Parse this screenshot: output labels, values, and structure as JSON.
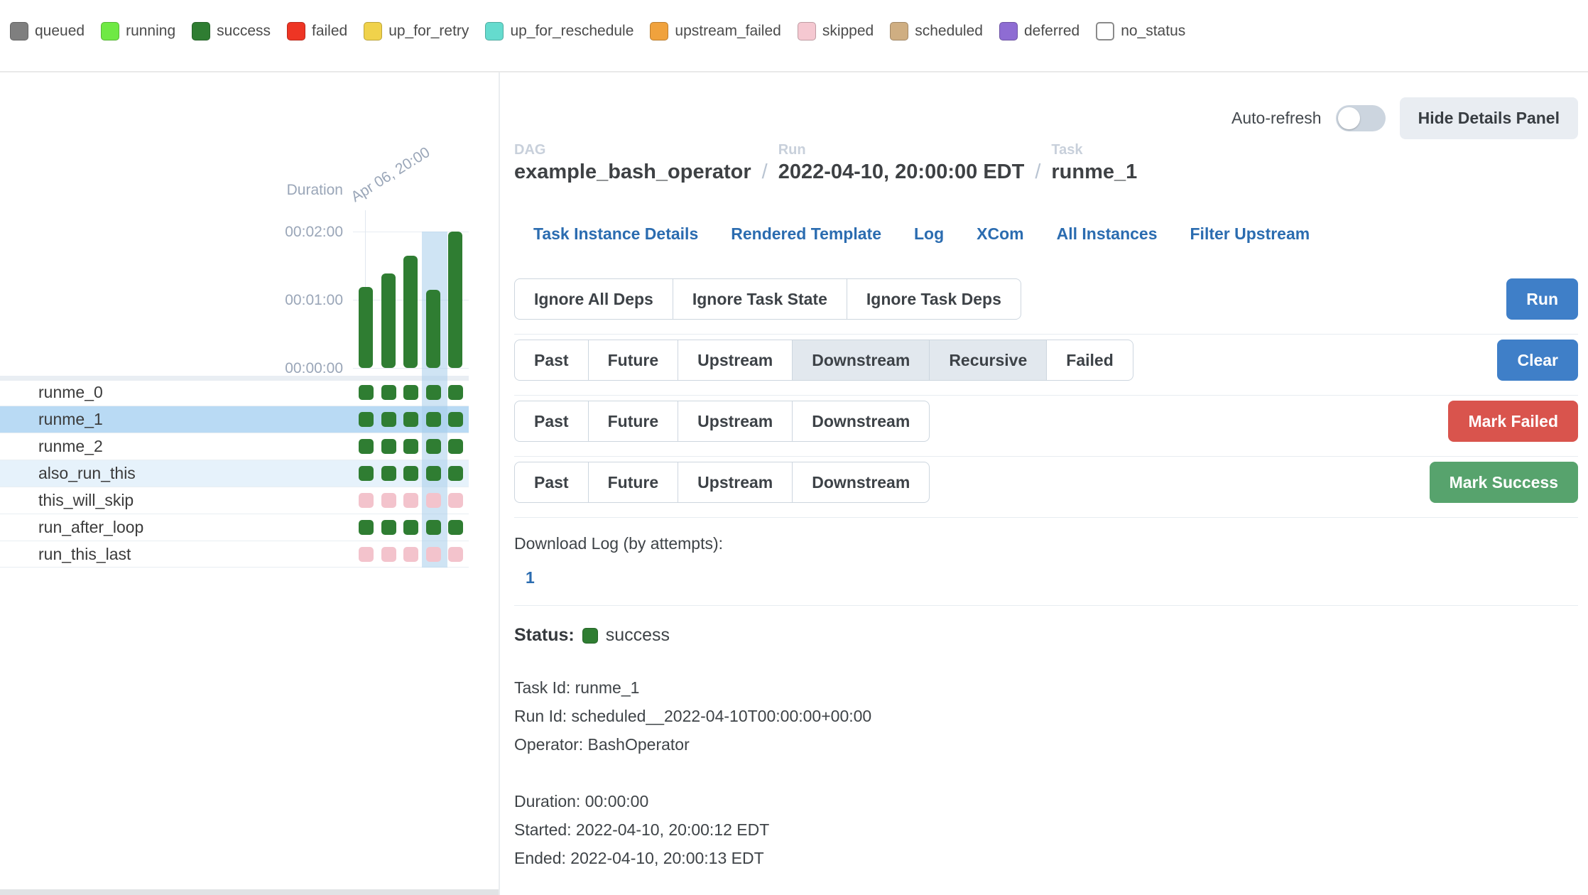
{
  "legend": {
    "items": [
      {
        "label": "queued",
        "color": "#7f7f7f"
      },
      {
        "label": "running",
        "color": "#6fe944"
      },
      {
        "label": "success",
        "color": "#2f7d32"
      },
      {
        "label": "failed",
        "color": "#ee3524"
      },
      {
        "label": "up_for_retry",
        "color": "#f0d24b"
      },
      {
        "label": "up_for_reschedule",
        "color": "#65dbce"
      },
      {
        "label": "upstream_failed",
        "color": "#f0a23d"
      },
      {
        "label": "skipped",
        "color": "#f5c8d1"
      },
      {
        "label": "scheduled",
        "color": "#cfae82"
      },
      {
        "label": "deferred",
        "color": "#8e6cd3"
      },
      {
        "label": "no_status",
        "color": "#ffffff",
        "bordered": true
      }
    ]
  },
  "panel_controls": {
    "auto_refresh_label": "Auto-refresh",
    "auto_refresh_on": false,
    "hide_details_label": "Hide Details Panel"
  },
  "breadcrumb": {
    "separator": "/",
    "items": [
      {
        "label": "DAG",
        "value": "example_bash_operator"
      },
      {
        "label": "Run",
        "value": "2022-04-10, 20:00:00 EDT"
      },
      {
        "label": "Task",
        "value": "runme_1"
      }
    ]
  },
  "nav_links": [
    "Task Instance Details",
    "Rendered Template",
    "Log",
    "XCom",
    "All Instances",
    "Filter Upstream"
  ],
  "action_rows": [
    {
      "name": "run",
      "options": [
        "Ignore All Deps",
        "Ignore Task State",
        "Ignore Task Deps"
      ],
      "active_options": [],
      "button_label": "Run",
      "button_color": "#3f7fc8"
    },
    {
      "name": "clear",
      "options": [
        "Past",
        "Future",
        "Upstream",
        "Downstream",
        "Recursive",
        "Failed"
      ],
      "active_options": [
        "Downstream",
        "Recursive"
      ],
      "button_label": "Clear",
      "button_color": "#3f7fc8"
    },
    {
      "name": "mark-failed",
      "options": [
        "Past",
        "Future",
        "Upstream",
        "Downstream"
      ],
      "active_options": [],
      "button_label": "Mark Failed",
      "button_color": "#d9544d"
    },
    {
      "name": "mark-success",
      "options": [
        "Past",
        "Future",
        "Upstream",
        "Downstream"
      ],
      "active_options": [],
      "button_label": "Mark Success",
      "button_color": "#57a36d"
    }
  ],
  "log_section": {
    "title": "Download Log (by attempts):",
    "attempts": [
      "1"
    ]
  },
  "status_section": {
    "label": "Status:",
    "value": "success",
    "color": "#2f7d32"
  },
  "task_details": {
    "identity_lines": [
      "Task Id: runme_1",
      "Run Id: scheduled__2022-04-10T00:00:00+00:00",
      "Operator: BashOperator"
    ],
    "timing_lines": [
      "Duration: 00:00:00",
      "Started: 2022-04-10, 20:00:12 EDT",
      "Ended: 2022-04-10, 20:00:13 EDT"
    ]
  },
  "chart_data": {
    "type": "bar",
    "title": "Duration",
    "ylabel": "Duration",
    "x_tick_label": "Apr 06, 20:00",
    "categories": [
      "Apr 06, 20:00",
      "",
      "",
      "",
      ""
    ],
    "values_seconds": [
      71,
      83,
      99,
      69,
      120
    ],
    "yticks": [
      "00:02:00",
      "00:01:00",
      "00:00:00"
    ],
    "ylim_seconds": [
      0,
      120
    ],
    "bar_state": "success",
    "bar_color": "#2f7d32",
    "selected_run_index": 3,
    "selected_column_color": "#cfe4f6",
    "grid": true,
    "legend_position": "none"
  },
  "task_grid": {
    "selected_run_index": 3,
    "state_colors": {
      "success": "#2f7d32",
      "skipped": "#f3c3cc"
    },
    "selected_row_color": "#b9daf4",
    "hover_row_color": "#e6f2fb",
    "rows": [
      {
        "name": "runme_0",
        "row_highlight": "none",
        "states": [
          "success",
          "success",
          "success",
          "success",
          "success"
        ]
      },
      {
        "name": "runme_1",
        "row_highlight": "selected",
        "states": [
          "success",
          "success",
          "success",
          "success",
          "success"
        ]
      },
      {
        "name": "runme_2",
        "row_highlight": "none",
        "states": [
          "success",
          "success",
          "success",
          "success",
          "success"
        ]
      },
      {
        "name": "also_run_this",
        "row_highlight": "hover",
        "states": [
          "success",
          "success",
          "success",
          "success",
          "success"
        ]
      },
      {
        "name": "this_will_skip",
        "row_highlight": "none",
        "states": [
          "skipped",
          "skipped",
          "skipped",
          "skipped",
          "skipped"
        ]
      },
      {
        "name": "run_after_loop",
        "row_highlight": "none",
        "states": [
          "success",
          "success",
          "success",
          "success",
          "success"
        ]
      },
      {
        "name": "run_this_last",
        "row_highlight": "none",
        "states": [
          "skipped",
          "skipped",
          "skipped",
          "skipped",
          "skipped"
        ]
      }
    ]
  }
}
